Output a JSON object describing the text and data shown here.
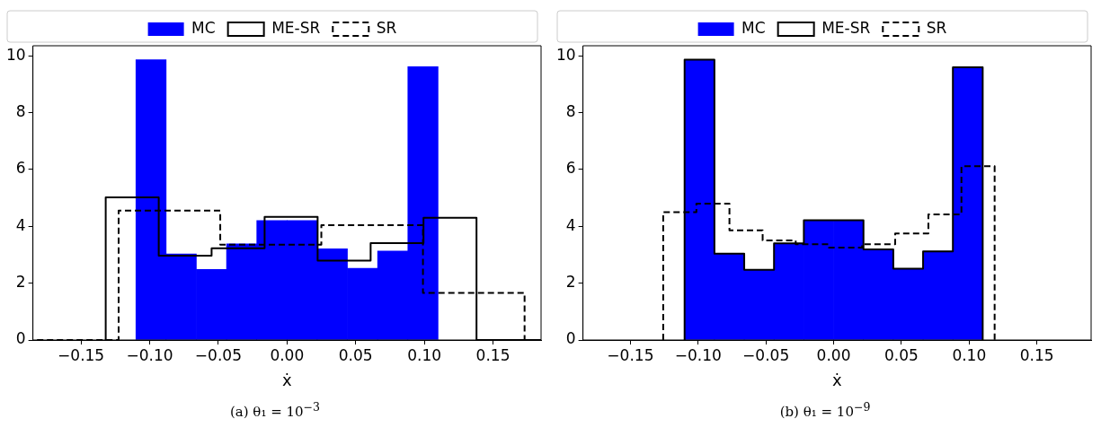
{
  "chart_data": [
    {
      "type": "histogram",
      "xlabel": "ẋ",
      "xlim": [
        -0.185,
        0.185
      ],
      "ylim": [
        0,
        10.35
      ],
      "xticks": [
        {
          "value": -0.15,
          "label": "−0.15"
        },
        {
          "value": -0.1,
          "label": "−0.10"
        },
        {
          "value": -0.05,
          "label": "−0.05"
        },
        {
          "value": 0,
          "label": "0.00"
        },
        {
          "value": 0.05,
          "label": "0.05"
        },
        {
          "value": 0.1,
          "label": "0.10"
        },
        {
          "value": 0.15,
          "label": "0.15"
        }
      ],
      "yticks": [
        0,
        2,
        4,
        6,
        8,
        10
      ],
      "grid": false,
      "legend": "top",
      "marker": "none",
      "annotations": [
        "(a) θ₁ = 10$^{−3}$"
      ],
      "bins": [
        -0.11,
        -0.088,
        -0.066,
        -0.044,
        -0.022,
        0,
        0.022,
        0.044,
        0.066,
        0.088,
        0.11
      ],
      "series": [
        {
          "name": "MC",
          "color": "#0000ff",
          "values": [
            9.86,
            3.03,
            2.48,
            3.38,
            4.2,
            4.2,
            3.21,
            2.52,
            3.13,
            9.61
          ]
        },
        {
          "name": "ME-SR",
          "type": "line",
          "color": "#000000",
          "line_style": "solid",
          "x": [
            -0.132,
            -0.132,
            -0.0934,
            -0.0934,
            -0.0549,
            -0.0549,
            -0.0163,
            -0.0163,
            0.0223,
            0.0223,
            0.0609,
            0.0609,
            0.0994,
            0.0994,
            0.138,
            0.138,
            0.185
          ],
          "values": [
            0,
            5.02,
            5.02,
            2.97,
            2.97,
            3.23,
            3.23,
            4.33,
            4.33,
            2.79,
            2.79,
            3.41,
            3.41,
            4.3,
            4.3,
            0,
            0
          ]
        },
        {
          "name": "SR",
          "type": "line",
          "color": "#000000",
          "line_style": "dashed",
          "x": [
            -0.182,
            -0.1226,
            -0.1226,
            -0.0486,
            -0.0486,
            0.025,
            0.025,
            0.099,
            0.099,
            0.173,
            0.173
          ],
          "values": [
            0,
            0,
            4.55,
            4.55,
            3.35,
            3.35,
            4.04,
            4.04,
            1.66,
            1.66,
            0
          ]
        }
      ]
    },
    {
      "type": "histogram",
      "xlabel": "ẋ",
      "xlim": [
        -0.185,
        0.19
      ],
      "ylim": [
        0,
        10.35
      ],
      "xticks": [
        {
          "value": -0.15,
          "label": "−0.15"
        },
        {
          "value": -0.1,
          "label": "−0.10"
        },
        {
          "value": -0.05,
          "label": "−0.05"
        },
        {
          "value": 0,
          "label": "0.00"
        },
        {
          "value": 0.05,
          "label": "0.05"
        },
        {
          "value": 0.1,
          "label": "0.10"
        },
        {
          "value": 0.15,
          "label": "0.15"
        }
      ],
      "yticks": [
        0,
        2,
        4,
        6,
        8,
        10
      ],
      "grid": false,
      "legend": "top",
      "marker": "none",
      "annotations": [
        "(b) θ₁ = 10$^{−9}$"
      ],
      "bins": [
        -0.11,
        -0.088,
        -0.066,
        -0.044,
        -0.022,
        0,
        0.022,
        0.044,
        0.066,
        0.088,
        0.11
      ],
      "series": [
        {
          "name": "MC",
          "color": "#0000ff",
          "values": [
            9.86,
            3.04,
            2.47,
            3.4,
            4.21,
            4.21,
            3.19,
            2.51,
            3.12,
            9.59
          ]
        },
        {
          "name": "ME-SR",
          "type": "line",
          "color": "#000000",
          "line_style": "solid",
          "x": [
            -0.11,
            -0.11,
            -0.088,
            -0.088,
            -0.066,
            -0.066,
            -0.044,
            -0.044,
            -0.022,
            -0.022,
            0,
            0,
            0.022,
            0.022,
            0.044,
            0.044,
            0.066,
            0.066,
            0.088,
            0.088,
            0.11,
            0.11
          ],
          "values": [
            0,
            9.86,
            9.86,
            3.04,
            3.04,
            2.47,
            2.47,
            3.4,
            3.4,
            4.21,
            4.21,
            4.21,
            4.21,
            3.19,
            3.19,
            2.51,
            2.51,
            3.12,
            3.12,
            9.59,
            9.59,
            0
          ]
        },
        {
          "name": "SR",
          "type": "line",
          "color": "#000000",
          "line_style": "dashed",
          "x": [
            -0.1258,
            -0.1258,
            -0.1013,
            -0.1013,
            -0.0769,
            -0.0769,
            -0.0524,
            -0.0524,
            -0.028,
            -0.028,
            -0.0035,
            -0.0035,
            0.021,
            0.021,
            0.0454,
            0.0454,
            0.0699,
            0.0699,
            0.0943,
            0.0943,
            0.1188,
            0.1188
          ],
          "values": [
            0,
            4.5,
            4.5,
            4.8,
            4.8,
            3.86,
            3.86,
            3.5,
            3.5,
            3.37,
            3.37,
            3.25,
            3.25,
            3.37,
            3.37,
            3.75,
            3.75,
            4.42,
            4.42,
            6.11,
            6.11,
            0
          ]
        }
      ]
    }
  ]
}
